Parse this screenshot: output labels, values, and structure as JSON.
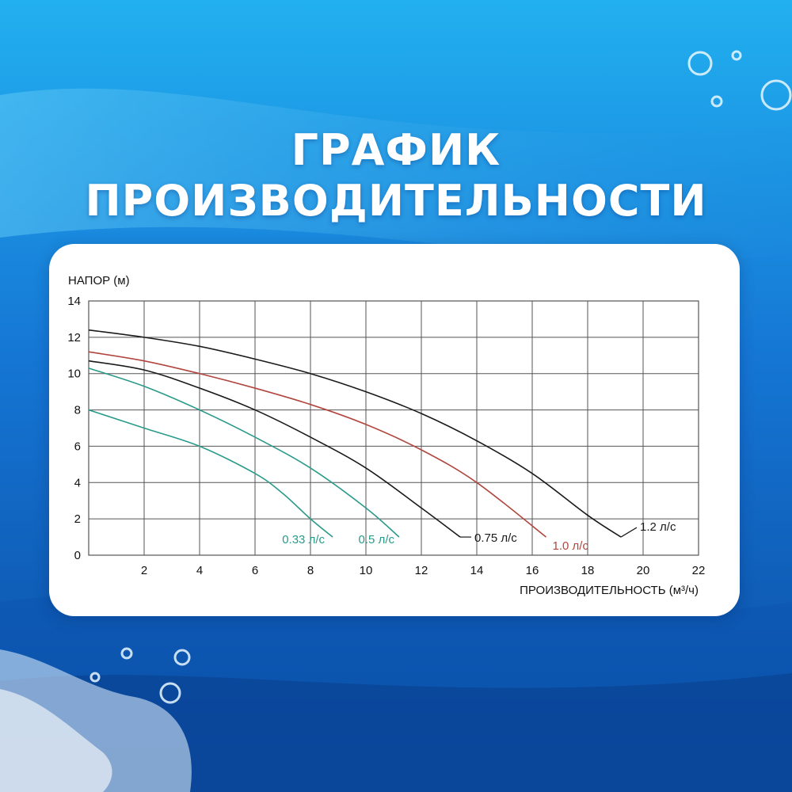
{
  "colors": {
    "background_top": "#1da3e8",
    "background_bottom": "#0b4fa8",
    "card": "#ffffff",
    "grid": "#555555",
    "teal": "#2a9a8a",
    "black": "#1a1a1a",
    "red": "#b0463e"
  },
  "title": {
    "line1": "ГРАФИК",
    "line2": "ПРОИЗВОДИТЕЛЬНОСТИ"
  },
  "chart_data": {
    "type": "line",
    "ylabel": "НАПОР (м)",
    "xlabel": "ПРОИЗВОДИТЕЛЬНОСТЬ (м³/ч)",
    "xlim": [
      0,
      22
    ],
    "ylim": [
      0,
      14
    ],
    "xticks": [
      2,
      4,
      6,
      8,
      10,
      12,
      14,
      16,
      18,
      20,
      22
    ],
    "yticks": [
      0,
      2,
      4,
      6,
      8,
      10,
      12,
      14
    ],
    "grid": true,
    "series": [
      {
        "name": "0.33 л/с",
        "color": "#2a9a8a",
        "x": [
          0,
          2,
          4,
          6,
          7,
          8,
          8.8
        ],
        "y": [
          8,
          7,
          6,
          4.5,
          3.4,
          2,
          1
        ]
      },
      {
        "name": "0.5 л/с",
        "color": "#2a9a8a",
        "x": [
          0,
          2,
          4,
          6,
          8,
          10,
          11.2
        ],
        "y": [
          10.3,
          9.3,
          8,
          6.5,
          4.8,
          2.6,
          1
        ]
      },
      {
        "name": "0.75 л/с",
        "color": "#1a1a1a",
        "x": [
          0,
          2,
          4,
          6,
          8,
          10,
          12,
          13.4
        ],
        "y": [
          10.7,
          10.2,
          9.2,
          8,
          6.5,
          4.8,
          2.6,
          1
        ]
      },
      {
        "name": "1.0 л/с",
        "color": "#b0463e",
        "x": [
          0,
          2,
          4,
          6,
          8,
          10,
          12,
          14,
          16.5
        ],
        "y": [
          11.2,
          10.7,
          10,
          9.2,
          8.3,
          7.2,
          5.8,
          4,
          1
        ]
      },
      {
        "name": "1.2 л/с",
        "color": "#1a1a1a",
        "x": [
          0,
          2,
          4,
          6,
          8,
          10,
          12,
          14,
          16,
          18,
          19.2
        ],
        "y": [
          12.4,
          12,
          11.5,
          10.8,
          10,
          9,
          7.8,
          6.3,
          4.5,
          2.2,
          1
        ]
      }
    ]
  }
}
